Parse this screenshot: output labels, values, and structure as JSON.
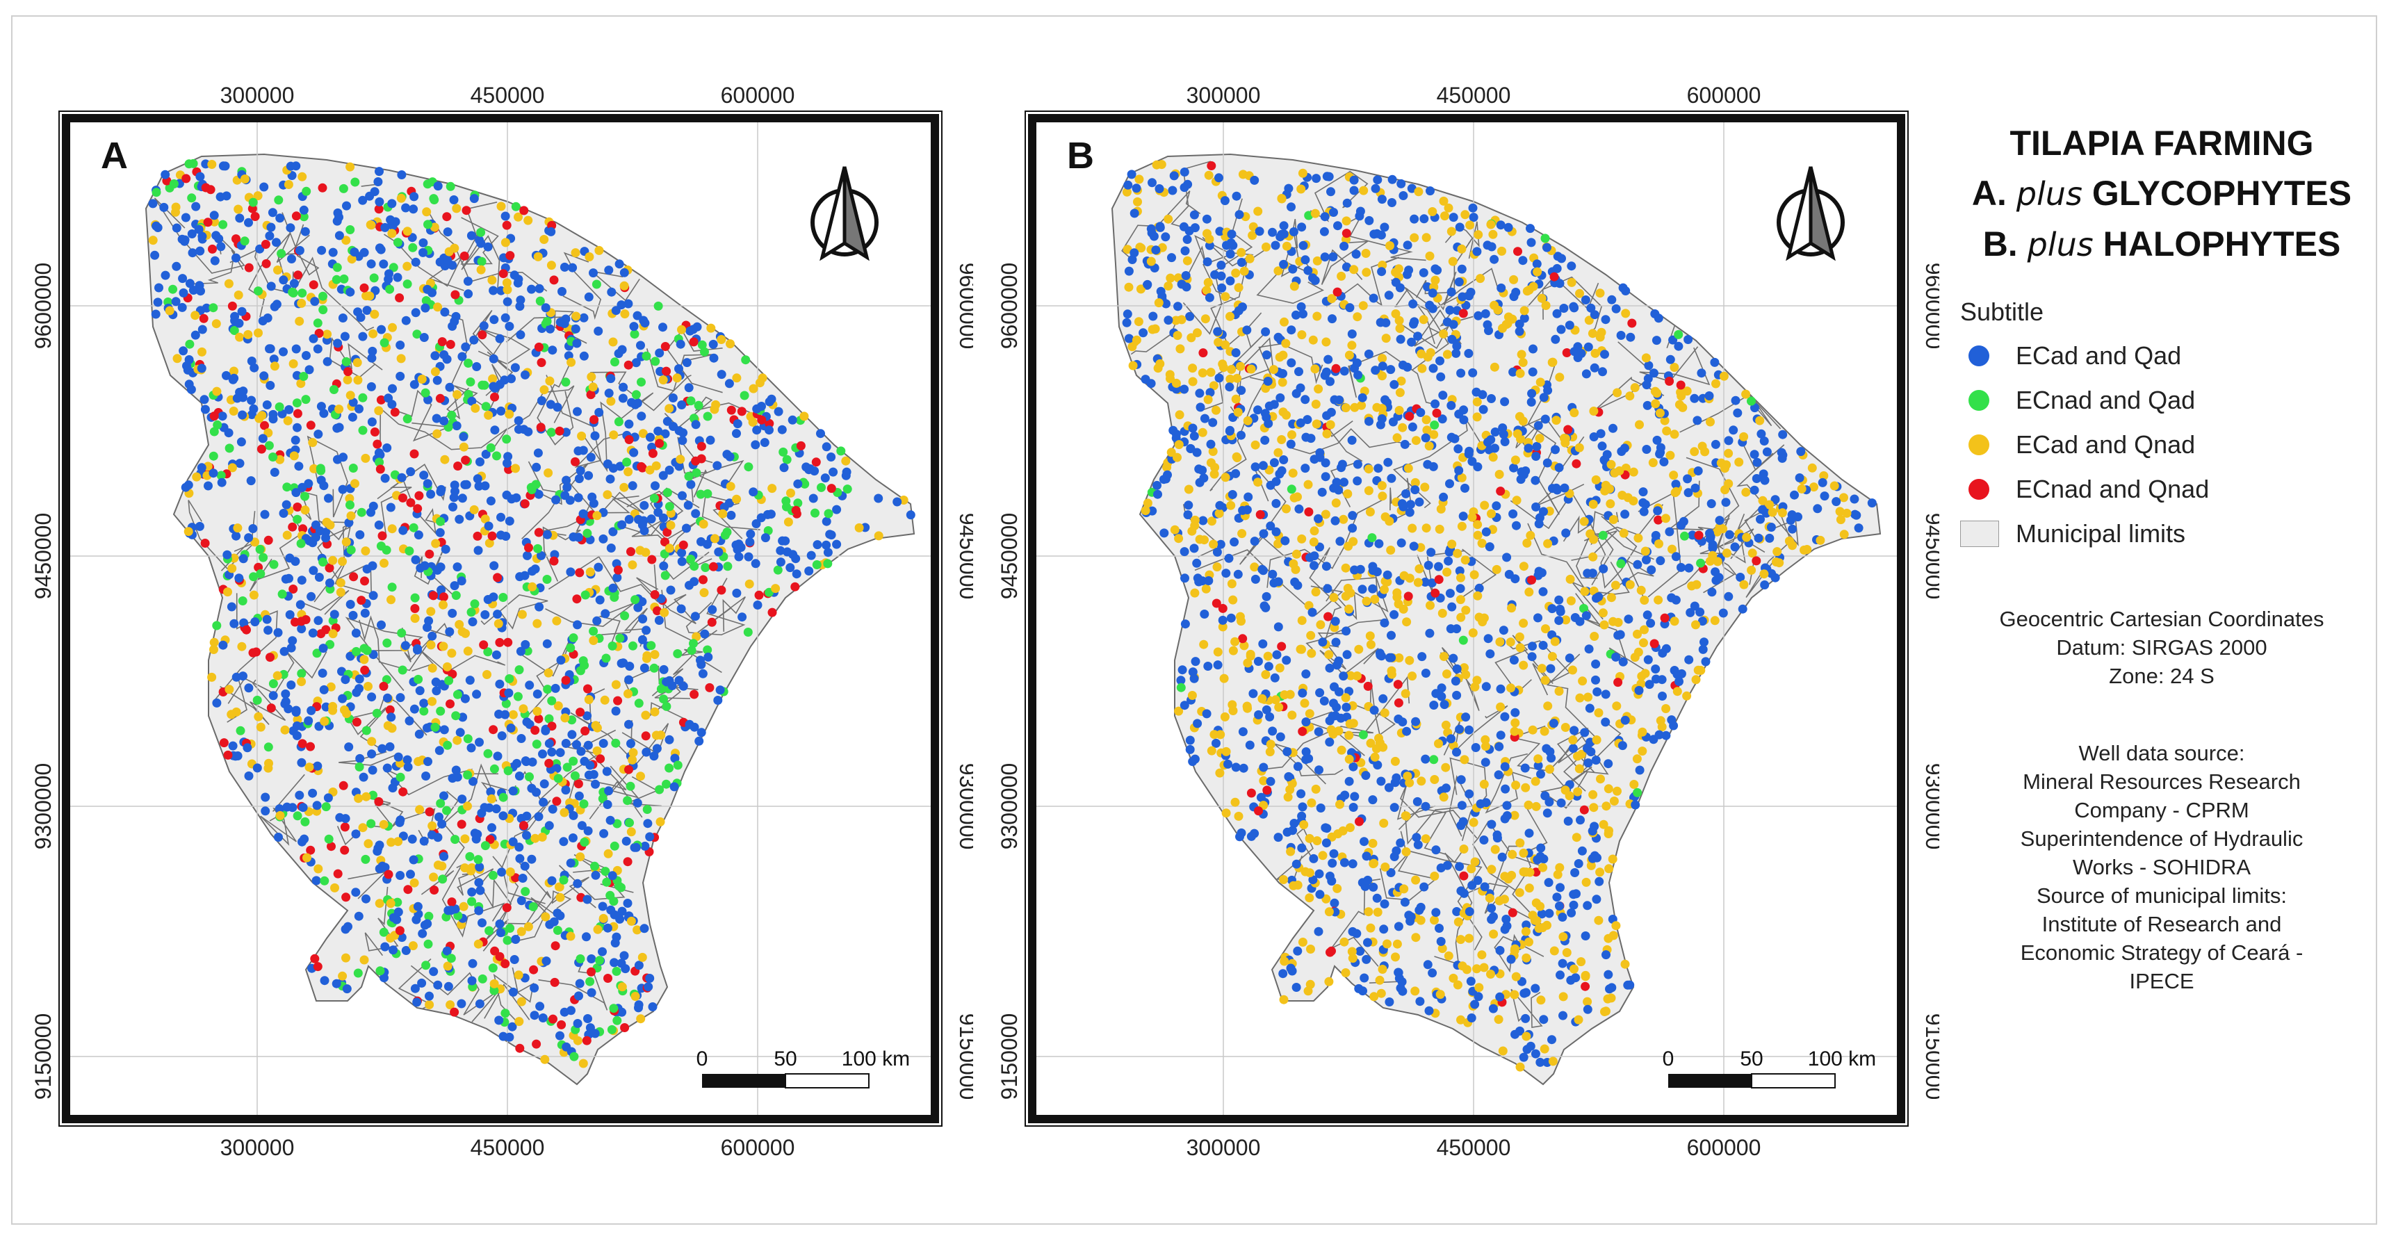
{
  "title": {
    "line1": "TILAPIA FARMING",
    "line2_prefix": "A.",
    "line2_italic": "plus",
    "line2_suffix": "GLYCOPHYTES",
    "line3_prefix": "B.",
    "line3_italic": "plus",
    "line3_suffix": "HALOPHYTES"
  },
  "legend": {
    "heading": "Subtitle",
    "items": [
      {
        "label": "ECad and Qad",
        "color": "#2160d8"
      },
      {
        "label": "ECnad and Qad",
        "color": "#33e04a"
      },
      {
        "label": "ECad and Qnad",
        "color": "#f3c21a"
      },
      {
        "label": "ECnad and Qnad",
        "color": "#e8141e"
      }
    ],
    "polygon_label": "Municipal limits",
    "polygon_color": "#ececec"
  },
  "projection": {
    "line1": "Geocentric Cartesian Coordinates",
    "line2": "Datum: SIRGAS 2000",
    "line3": "Zone: 24 S"
  },
  "sources": {
    "lines": [
      "Well data source:",
      "Mineral Resources Research",
      "Company - CPRM",
      "Superintendence of Hydraulic",
      "Works - SOHIDRA",
      "Source of municipal limits:",
      "Institute of Research and",
      "Economic Strategy of Ceará -",
      "IPECE"
    ]
  },
  "axes": {
    "x_ticks": [
      "300000",
      "450000",
      "600000"
    ],
    "y_ticks": [
      "9600000",
      "9450000",
      "9300000",
      "9150000"
    ]
  },
  "scale_bar": {
    "labels": [
      "0",
      "50",
      "100 km"
    ]
  },
  "panels": [
    {
      "letter": "A",
      "mix": [
        0.5,
        0.18,
        0.2,
        0.12
      ],
      "seed": 11
    },
    {
      "letter": "B",
      "mix": [
        0.56,
        0.01,
        0.4,
        0.03
      ],
      "seed": 29
    }
  ]
}
